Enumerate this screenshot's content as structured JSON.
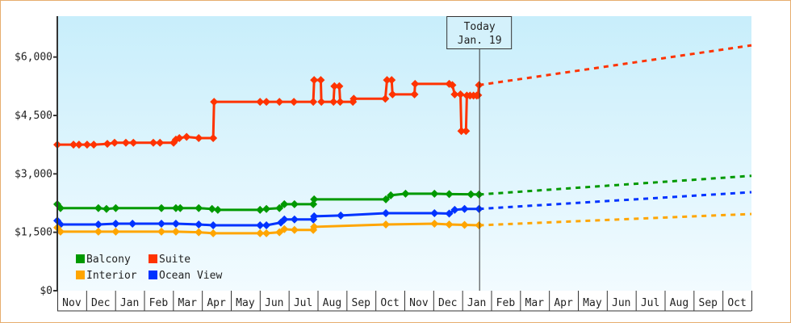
{
  "chart_data": {
    "type": "line",
    "x_categories": [
      "Nov",
      "Dec",
      "Jan",
      "Feb",
      "Mar",
      "Apr",
      "May",
      "Jun",
      "Jul",
      "Aug",
      "Sep",
      "Oct",
      "Nov",
      "Dec",
      "Jan",
      "Feb",
      "Mar",
      "Apr",
      "May",
      "Jun",
      "Jul",
      "Aug",
      "Sep",
      "Oct"
    ],
    "y_ticks": [
      "$0",
      "$1,500",
      "$3,000",
      "$4,500",
      "$6,000"
    ],
    "y_tick_values": [
      0,
      1500,
      3000,
      4500,
      6000
    ],
    "ylim": [
      0,
      7050
    ],
    "today": {
      "line1": "Today",
      "line2": "Jan. 19",
      "x": 14.6
    },
    "legend_position": "bottom-left",
    "background": [
      "#c8eefb",
      "#f2fbff"
    ],
    "series": [
      {
        "name": "Suite",
        "color": "#ff3300",
        "points": [
          [
            0,
            3750
          ],
          [
            0.56,
            3750
          ],
          [
            0.75,
            3750
          ],
          [
            1.03,
            3750
          ],
          [
            1.26,
            3750
          ],
          [
            1.73,
            3770
          ],
          [
            1.98,
            3800
          ],
          [
            2.37,
            3800
          ],
          [
            2.63,
            3800
          ],
          [
            3.32,
            3800
          ],
          [
            3.55,
            3800
          ],
          [
            4.02,
            3800
          ],
          [
            4.1,
            3880
          ],
          [
            4.22,
            3920
          ],
          [
            4.47,
            3950
          ],
          [
            4.89,
            3920
          ],
          [
            5.39,
            3920
          ],
          [
            5.42,
            4850
          ],
          [
            7.01,
            4850
          ],
          [
            7.23,
            4850
          ],
          [
            7.68,
            4850
          ],
          [
            8.18,
            4850
          ],
          [
            8.85,
            4850
          ],
          [
            8.88,
            5410
          ],
          [
            9.11,
            5410
          ],
          [
            9.13,
            4850
          ],
          [
            9.55,
            4850
          ],
          [
            9.58,
            5250
          ],
          [
            9.75,
            5250
          ],
          [
            9.78,
            4850
          ],
          [
            10.22,
            4850
          ],
          [
            10.25,
            4930
          ],
          [
            11.34,
            4930
          ],
          [
            11.4,
            5410
          ],
          [
            11.56,
            5410
          ],
          [
            11.59,
            5040
          ],
          [
            12.35,
            5040
          ],
          [
            12.37,
            5310
          ],
          [
            13.55,
            5310
          ],
          [
            13.66,
            5280
          ],
          [
            13.74,
            5040
          ],
          [
            13.94,
            5040
          ],
          [
            13.97,
            4100
          ],
          [
            14.13,
            4100
          ],
          [
            14.16,
            5010
          ],
          [
            14.27,
            5010
          ],
          [
            14.39,
            5010
          ],
          [
            14.5,
            5010
          ],
          [
            14.55,
            5020
          ],
          [
            14.58,
            5280
          ]
        ],
        "forecast": [
          [
            14.58,
            5280
          ],
          [
            24,
            6300
          ]
        ]
      },
      {
        "name": "Balcony",
        "color": "#009900",
        "points": [
          [
            0,
            2220
          ],
          [
            0.11,
            2120
          ],
          [
            1.42,
            2120
          ],
          [
            1.7,
            2100
          ],
          [
            2.02,
            2120
          ],
          [
            3.6,
            2120
          ],
          [
            4.1,
            2120
          ],
          [
            4.25,
            2120
          ],
          [
            4.89,
            2120
          ],
          [
            5.35,
            2100
          ],
          [
            5.55,
            2075
          ],
          [
            7.01,
            2075
          ],
          [
            7.23,
            2100
          ],
          [
            7.68,
            2120
          ],
          [
            7.85,
            2220
          ],
          [
            8.2,
            2220
          ],
          [
            8.85,
            2220
          ],
          [
            8.88,
            2345
          ],
          [
            11.36,
            2345
          ],
          [
            11.53,
            2450
          ],
          [
            12.04,
            2490
          ],
          [
            13.04,
            2490
          ],
          [
            13.55,
            2480
          ],
          [
            14.3,
            2475
          ],
          [
            14.58,
            2470
          ]
        ],
        "forecast": [
          [
            14.58,
            2470
          ],
          [
            24,
            2950
          ]
        ]
      },
      {
        "name": "Ocean View",
        "color": "#0033ff",
        "points": [
          [
            0,
            1800
          ],
          [
            0.11,
            1700
          ],
          [
            1.42,
            1700
          ],
          [
            2.02,
            1720
          ],
          [
            2.6,
            1720
          ],
          [
            3.6,
            1720
          ],
          [
            4.1,
            1720
          ],
          [
            4.89,
            1700
          ],
          [
            5.39,
            1680
          ],
          [
            7.01,
            1680
          ],
          [
            7.23,
            1680
          ],
          [
            7.73,
            1750
          ],
          [
            7.85,
            1830
          ],
          [
            8.2,
            1830
          ],
          [
            8.85,
            1830
          ],
          [
            8.88,
            1910
          ],
          [
            9.8,
            1930
          ],
          [
            11.36,
            1990
          ],
          [
            13.04,
            1990
          ],
          [
            13.55,
            1980
          ],
          [
            13.74,
            2075
          ],
          [
            14.08,
            2100
          ],
          [
            14.58,
            2100
          ]
        ],
        "forecast": [
          [
            14.58,
            2100
          ],
          [
            24,
            2530
          ]
        ]
      },
      {
        "name": "Interior",
        "color": "#ffa500",
        "points": [
          [
            0,
            1620
          ],
          [
            0.11,
            1515
          ],
          [
            1.42,
            1515
          ],
          [
            2.02,
            1515
          ],
          [
            3.6,
            1515
          ],
          [
            4.1,
            1515
          ],
          [
            4.89,
            1500
          ],
          [
            5.39,
            1475
          ],
          [
            7.01,
            1475
          ],
          [
            7.23,
            1475
          ],
          [
            7.68,
            1500
          ],
          [
            7.85,
            1580
          ],
          [
            8.2,
            1560
          ],
          [
            8.85,
            1560
          ],
          [
            8.88,
            1640
          ],
          [
            11.36,
            1700
          ],
          [
            13.04,
            1720
          ],
          [
            13.55,
            1700
          ],
          [
            14.08,
            1690
          ],
          [
            14.58,
            1680
          ]
        ],
        "forecast": [
          [
            14.58,
            1680
          ],
          [
            24,
            1970
          ]
        ]
      }
    ],
    "legend": [
      {
        "name": "Balcony",
        "color": "#009900"
      },
      {
        "name": "Suite",
        "color": "#ff3300"
      },
      {
        "name": "Interior",
        "color": "#ffa500"
      },
      {
        "name": "Ocean View",
        "color": "#0033ff"
      }
    ]
  }
}
